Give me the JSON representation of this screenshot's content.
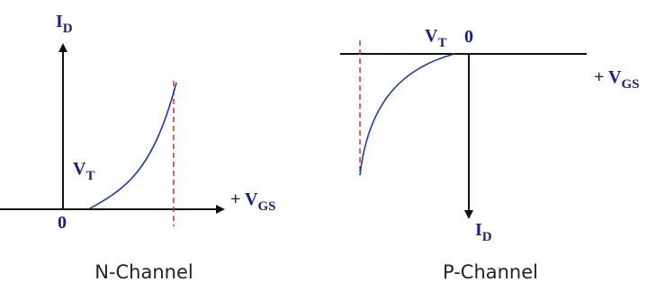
{
  "n_channel": {
    "caption": "N-Channel",
    "y_axis": {
      "main": "I",
      "sub": "D"
    },
    "x_axis": {
      "main": "+ V",
      "sub": "GS"
    },
    "origin": "0",
    "threshold": {
      "main": "V",
      "sub": "T"
    }
  },
  "p_channel": {
    "caption": "P-Channel",
    "y_axis": {
      "main": "I",
      "sub": "D"
    },
    "x_axis": {
      "main": "+ V",
      "sub": "GS"
    },
    "origin": "0",
    "threshold": {
      "main": "V",
      "sub": "T"
    }
  }
}
